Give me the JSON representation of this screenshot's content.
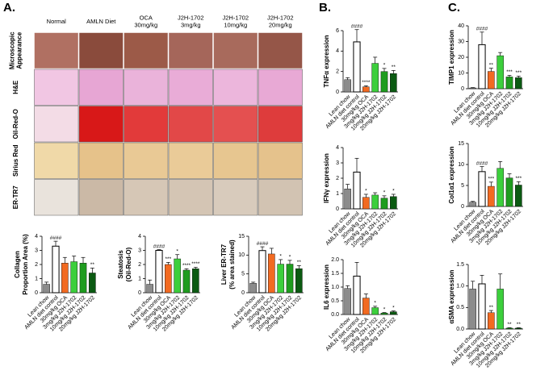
{
  "panel_labels": [
    "A.",
    "B.",
    "C."
  ],
  "image_grid": {
    "columns": [
      "Normal",
      "AMLN Diet",
      "OCA\n30mg/kg",
      "J2H-1702\n3mg/kg",
      "J2H-1702\n10mg/kg",
      "J2H-1702\n20mg/kg"
    ],
    "rows": [
      "Microscopic\nAppearance",
      "H&E",
      "Oil-Red-O",
      "Sirius Red",
      "ER-TR7"
    ]
  },
  "chart_data": [
    {
      "type": "bar",
      "ylabel": [
        "Collagen",
        "Proportion Area (%)"
      ],
      "categories": [
        "Lean chow",
        "AMLN diet control",
        "30mg/kg OCA",
        "3mg/kg J2H-1702",
        "10mg/kg J2H-1702",
        "20mg/kg J2H-1702"
      ],
      "values": [
        0.6,
        3.3,
        2.1,
        2.2,
        2.1,
        1.4
      ],
      "errors": [
        0.15,
        0.35,
        0.4,
        0.4,
        0.4,
        0.35
      ],
      "value_annotations": [
        null,
        "####",
        null,
        null,
        null,
        "**"
      ],
      "colors": [
        "#8c8c8c",
        "#ffffff",
        "#f26a21",
        "#3ccf3c",
        "#1f9c1f",
        "#0b5a12"
      ],
      "ylim": [
        0,
        4
      ],
      "yticks": [
        0,
        1,
        2,
        3,
        4
      ]
    },
    {
      "type": "bar",
      "ylabel": [
        "Steatosis",
        "(Oil-Red-O)"
      ],
      "categories": [
        "Lean chow",
        "AMLN diet control",
        "30mg/kg OCA",
        "3mg/kg J2H-1702",
        "10mg/kg J2H-1702",
        "20mg/kg J2H-1702"
      ],
      "values": [
        0.6,
        3.0,
        2.0,
        2.4,
        1.6,
        1.7
      ],
      "errors": [
        0.3,
        0.05,
        0.15,
        0.3,
        0.1,
        0.1
      ],
      "value_annotations": [
        null,
        "####",
        "***",
        "*",
        "****",
        "****"
      ],
      "colors": [
        "#8c8c8c",
        "#ffffff",
        "#f26a21",
        "#3ccf3c",
        "#1f9c1f",
        "#0b5a12"
      ],
      "ylim": [
        0,
        4
      ],
      "yticks": [
        0,
        1,
        2,
        3,
        4
      ]
    },
    {
      "type": "bar",
      "ylabel": [
        "Liver ER-TR7",
        "(% area stained)"
      ],
      "categories": [
        "Lean chow",
        "AMLN diet control",
        "30mg/kg OCA",
        "3mg/kg J2H-1702",
        "10mg/kg J2H-1702",
        "20mg/kg J2H-1702"
      ],
      "values": [
        2.5,
        11.2,
        10.3,
        7.6,
        7.6,
        6.4
      ],
      "errors": [
        0.3,
        1.0,
        1.5,
        1.2,
        1.0,
        0.8
      ],
      "value_annotations": [
        null,
        "####",
        null,
        "*",
        "*",
        "**"
      ],
      "colors": [
        "#8c8c8c",
        "#ffffff",
        "#f26a21",
        "#3ccf3c",
        "#1f9c1f",
        "#0b5a12"
      ],
      "ylim": [
        0,
        15
      ],
      "yticks": [
        0,
        5,
        10,
        15
      ]
    },
    {
      "type": "bar",
      "ylabel": [
        "TNFα expression"
      ],
      "categories": [
        "Lean chow",
        "AMLN diet control",
        "30mg/kg OCA",
        "3mg/kg J2H-1702",
        "10mg/kg J2H-1702",
        "20mg/kg J2H-1702"
      ],
      "values": [
        1.2,
        4.9,
        0.5,
        2.8,
        2.0,
        1.8
      ],
      "errors": [
        0.2,
        1.2,
        0.1,
        0.6,
        0.3,
        0.3
      ],
      "value_annotations": [
        null,
        "####",
        "****",
        null,
        "*",
        "**"
      ],
      "colors": [
        "#8c8c8c",
        "#ffffff",
        "#f26a21",
        "#3ccf3c",
        "#1f9c1f",
        "#0b5a12"
      ],
      "ylim": [
        0,
        6
      ],
      "yticks": [
        0,
        2,
        4,
        6
      ]
    },
    {
      "type": "bar",
      "ylabel": [
        "IFNγ expression"
      ],
      "categories": [
        "Lean chow",
        "AMLN diet control",
        "30mg/kg OCA",
        "3mg/kg J2H-1702",
        "10mg/kg J2H-1702",
        "20mg/kg J2H-1702"
      ],
      "values": [
        1.3,
        2.4,
        0.75,
        0.9,
        0.7,
        0.8
      ],
      "errors": [
        0.3,
        0.9,
        0.2,
        0.15,
        0.15,
        0.15
      ],
      "value_annotations": [
        null,
        null,
        "*",
        null,
        "*",
        "*"
      ],
      "colors": [
        "#8c8c8c",
        "#ffffff",
        "#f26a21",
        "#3ccf3c",
        "#1f9c1f",
        "#0b5a12"
      ],
      "ylim": [
        0,
        4
      ],
      "yticks": [
        0,
        1,
        2,
        3,
        4
      ]
    },
    {
      "type": "bar",
      "ylabel": [
        "IL6 expression"
      ],
      "categories": [
        "Lean chow",
        "AMLN diet control",
        "30mg/kg OCA",
        "3mg/kg J2H-1702",
        "10mg/kg J2H-1702",
        "20mg/kg J2H-1702"
      ],
      "values": [
        0.95,
        1.4,
        0.6,
        0.25,
        0.05,
        0.1
      ],
      "errors": [
        0.1,
        0.5,
        0.15,
        0.05,
        0.02,
        0.03
      ],
      "value_annotations": [
        null,
        null,
        null,
        "*",
        "*",
        "*"
      ],
      "colors": [
        "#8c8c8c",
        "#ffffff",
        "#f26a21",
        "#3ccf3c",
        "#1f9c1f",
        "#0b5a12"
      ],
      "ylim": [
        0,
        2
      ],
      "yticks": [
        {
          "value": 0,
          "label": "0.0"
        },
        0.5,
        {
          "value": 1,
          "label": "1.0"
        },
        1.5,
        {
          "value": 2,
          "label": "2.0"
        }
      ]
    },
    {
      "type": "bar",
      "ylabel": [
        "TIMP1 expression"
      ],
      "categories": [
        "Lean chow",
        "AMLN diet control",
        "30mg/kg OCA",
        "3mg/kg J2H-1702",
        "10mg/kg J2H-1702",
        "20mg/kg J2H-1702"
      ],
      "values": [
        0.5,
        28,
        11,
        21,
        7.5,
        7
      ],
      "errors": [
        0.2,
        8,
        2,
        2,
        1,
        1
      ],
      "value_annotations": [
        null,
        "####",
        "**",
        null,
        "***",
        "***"
      ],
      "colors": [
        "#8c8c8c",
        "#ffffff",
        "#f26a21",
        "#3ccf3c",
        "#1f9c1f",
        "#0b5a12"
      ],
      "ylim": [
        0,
        40
      ],
      "yticks": [
        0,
        10,
        20,
        30,
        40
      ]
    },
    {
      "type": "bar",
      "ylabel": [
        "Col1α1 expression"
      ],
      "categories": [
        "Lean chow",
        "AMLN diet control",
        "30mg/kg OCA",
        "3mg/kg J2H-1702",
        "10mg/kg J2H-1702",
        "20mg/kg J2H-1702"
      ],
      "values": [
        1,
        8.3,
        4.8,
        9.1,
        6.8,
        5.1
      ],
      "errors": [
        0.2,
        1.2,
        1.0,
        1.6,
        1.0,
        0.8
      ],
      "value_annotations": [
        null,
        "####",
        "***",
        null,
        null,
        "***"
      ],
      "colors": [
        "#8c8c8c",
        "#ffffff",
        "#f26a21",
        "#3ccf3c",
        "#1f9c1f",
        "#0b5a12"
      ],
      "ylim": [
        0,
        15
      ],
      "yticks": [
        0,
        5,
        10,
        15
      ]
    },
    {
      "type": "bar",
      "ylabel": [
        "αSMA expression"
      ],
      "categories": [
        "Lean chow",
        "AMLN diet control",
        "30mg/kg OCA",
        "3mg/kg J2H-1702",
        "10mg/kg J2H-1702",
        "20mg/kg J2H-1702"
      ],
      "values": [
        0.93,
        1.05,
        0.38,
        0.93,
        0.02,
        0.02
      ],
      "errors": [
        0.18,
        0.2,
        0.05,
        0.35,
        0.01,
        0.01
      ],
      "value_annotations": [
        null,
        null,
        "**",
        null,
        "**",
        "**"
      ],
      "colors": [
        "#8c8c8c",
        "#ffffff",
        "#f26a21",
        "#3ccf3c",
        "#1f9c1f",
        "#0b5a12"
      ],
      "ylim": [
        0,
        1.5
      ],
      "yticks": [
        {
          "value": 0,
          "label": "0.0"
        },
        0.5,
        {
          "value": 1,
          "label": "1.0"
        },
        1.5
      ]
    }
  ]
}
